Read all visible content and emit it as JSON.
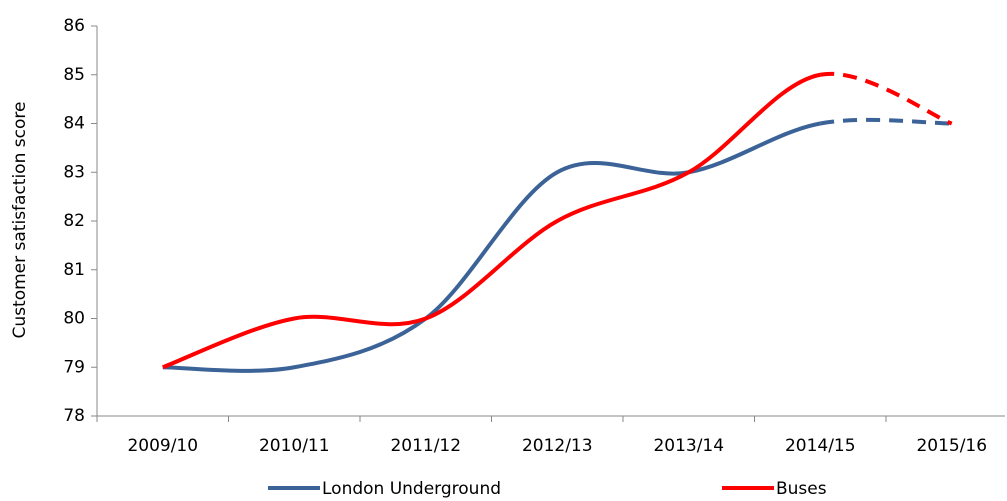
{
  "chart_data": {
    "type": "line",
    "smooth": true,
    "ylabel": "Customer satisfaction score",
    "categories": [
      "2009/10",
      "2010/11",
      "2011/12",
      "2012/13",
      "2013/14",
      "2014/15",
      "2015/16"
    ],
    "series": [
      {
        "name": "London Underground",
        "color": "#3c6397",
        "values": [
          79,
          79,
          80,
          83,
          83,
          84,
          84
        ],
        "dashed_from": "2014/15"
      },
      {
        "name": "Buses",
        "color": "#ff0000",
        "values": [
          79,
          80,
          80,
          82,
          83,
          85,
          84
        ],
        "dashed_from": "2014/15"
      }
    ],
    "ylim": [
      78,
      86
    ],
    "yticks": [
      78,
      79,
      80,
      81,
      82,
      83,
      84,
      85,
      86
    ],
    "legend": "bottom"
  }
}
